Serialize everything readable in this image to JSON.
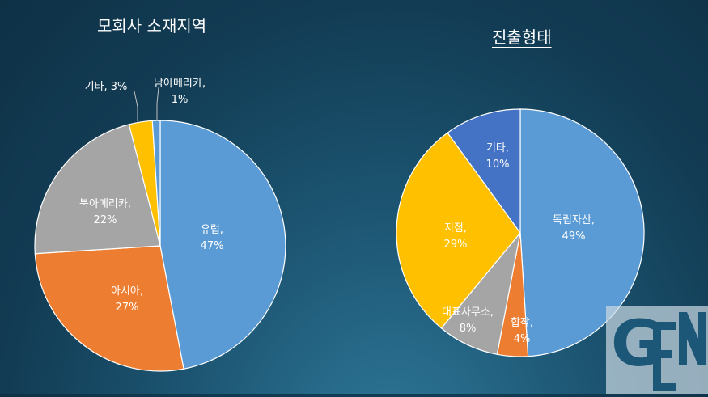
{
  "colors": {
    "blue": "#5b9bd5",
    "orange": "#ed7d31",
    "gray": "#a5a5a5",
    "gold": "#ffc000",
    "darkblue": "#4472c4",
    "logo": "#1d5778"
  },
  "logo": {
    "text": "GEN"
  },
  "chart_data": [
    {
      "type": "pie",
      "title": "모회사 소재지역",
      "slices": [
        {
          "label": "유럽",
          "value": 47,
          "pct_text": "47%",
          "color": "#5b9bd5"
        },
        {
          "label": "아시아",
          "value": 27,
          "pct_text": "27%",
          "color": "#ed7d31"
        },
        {
          "label": "북아메리카",
          "value": 22,
          "pct_text": "22%",
          "color": "#a5a5a5"
        },
        {
          "label": "기타",
          "value": 3,
          "pct_text": "3%",
          "color": "#ffc000"
        },
        {
          "label": "남아메리카",
          "value": 1,
          "pct_text": "1%",
          "color": "#5b9bd5"
        }
      ]
    },
    {
      "type": "pie",
      "title": "진출형태",
      "slices": [
        {
          "label": "독립자산",
          "value": 49,
          "pct_text": "49%",
          "color": "#5b9bd5"
        },
        {
          "label": "합작",
          "value": 4,
          "pct_text": "4%",
          "color": "#ed7d31"
        },
        {
          "label": "대표사무소",
          "value": 8,
          "pct_text": "8%",
          "color": "#a5a5a5"
        },
        {
          "label": "지점",
          "value": 29,
          "pct_text": "29%",
          "color": "#ffc000"
        },
        {
          "label": "기타",
          "value": 10,
          "pct_text": "10%",
          "color": "#4472c4"
        }
      ]
    }
  ]
}
